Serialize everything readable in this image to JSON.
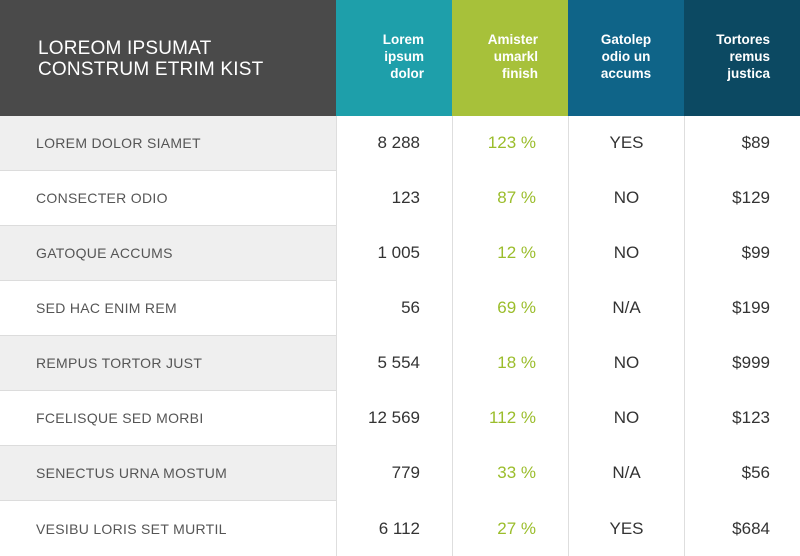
{
  "header": {
    "title_line1": "LOREOM IPSUMAT",
    "title_line2": "CONSTRUM ETRIM KIST",
    "columns": [
      {
        "label": "Lorem\nipsum\ndolor",
        "color": "#1e9faa"
      },
      {
        "label": "Amister\numarkl\nfinish",
        "color": "#a7c13a"
      },
      {
        "label": "Gatolep\nodio un\naccums",
        "color": "#0f6488"
      },
      {
        "label": "Tortores\nremus\njustica",
        "color": "#0c4962"
      }
    ]
  },
  "rows": [
    {
      "label": "LOREM DOLOR SIAMET",
      "c1": "8 288",
      "c2": "123 %",
      "c3": "YES",
      "c4": "$89"
    },
    {
      "label": "CONSECTER ODIO",
      "c1": "123",
      "c2": "87 %",
      "c3": "NO",
      "c4": "$129"
    },
    {
      "label": "GATOQUE ACCUMS",
      "c1": "1 005",
      "c2": "12 %",
      "c3": "NO",
      "c4": "$99"
    },
    {
      "label": "SED HAC ENIM REM",
      "c1": "56",
      "c2": "69 %",
      "c3": "N/A",
      "c4": "$199"
    },
    {
      "label": "REMPUS TORTOR JUST",
      "c1": "5 554",
      "c2": "18 %",
      "c3": "NO",
      "c4": "$999"
    },
    {
      "label": "FCELISQUE SED MORBI",
      "c1": "12 569",
      "c2": "112 %",
      "c3": "NO",
      "c4": "$123"
    },
    {
      "label": "SENECTUS URNA MOSTUM",
      "c1": "779",
      "c2": "33 %",
      "c3": "N/A",
      "c4": "$56"
    },
    {
      "label": "VESIBU LORIS SET MURTIL",
      "c1": "6 112",
      "c2": "27 %",
      "c3": "YES",
      "c4": "$684"
    }
  ],
  "colors": {
    "title_bg": "#4a4a4a",
    "percent_text": "#9bbd2b",
    "row_shade": "#efefef"
  }
}
